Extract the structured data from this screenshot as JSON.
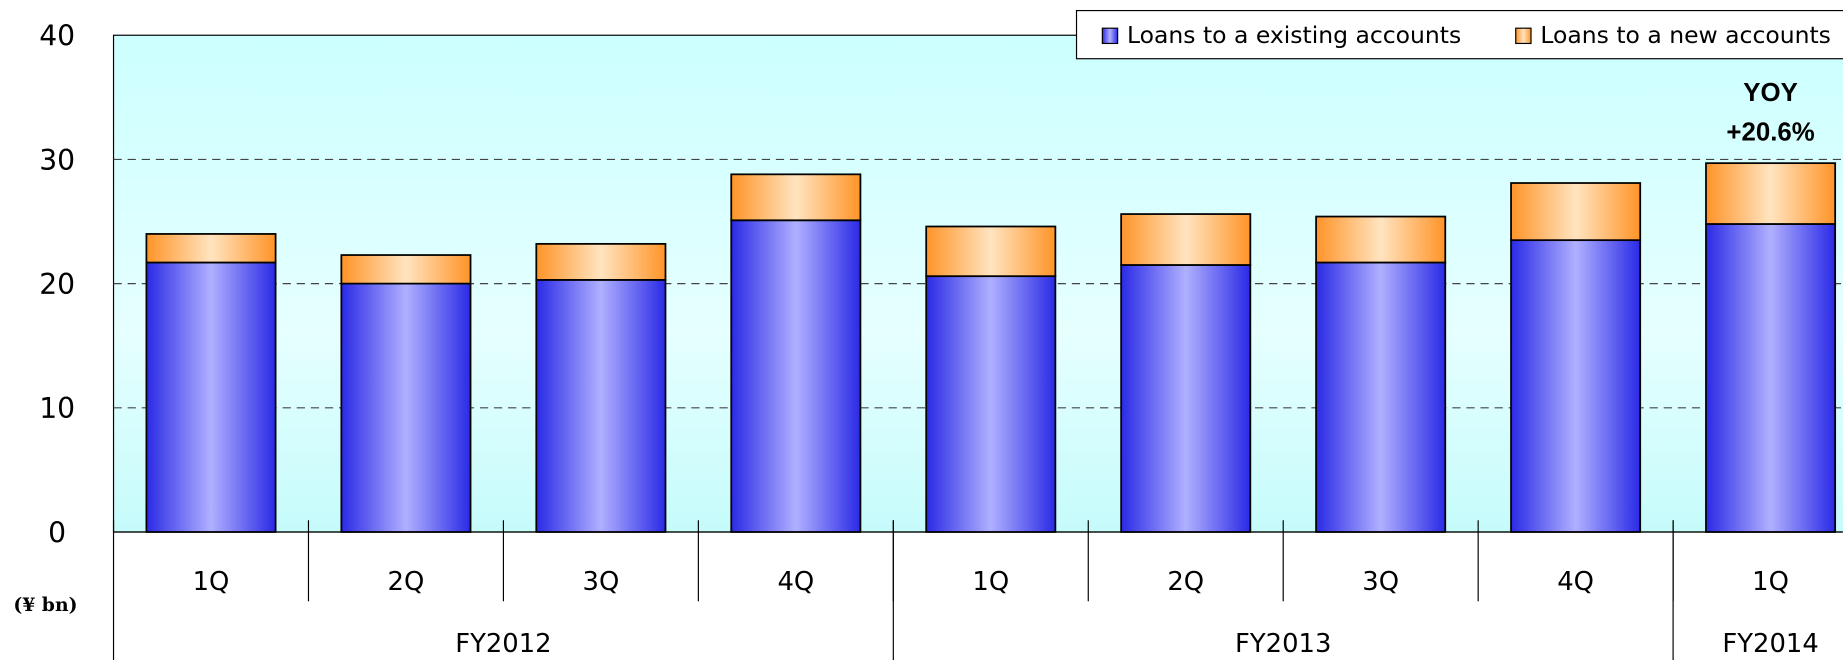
{
  "chart_data": {
    "type": "stacked_bar",
    "unit_label": "(¥ bn)",
    "categories": [
      "1Q",
      "2Q",
      "3Q",
      "4Q",
      "1Q",
      "2Q",
      "3Q",
      "4Q",
      "1Q"
    ],
    "groups": [
      {
        "name": "FY2012",
        "size": 4
      },
      {
        "name": "FY2013",
        "size": 4
      },
      {
        "name": "FY2014",
        "size": 1
      }
    ],
    "series": [
      {
        "name": "Loans to a existing accounts",
        "color": "#3a3aee",
        "values": [
          21.7,
          20.0,
          20.3,
          25.1,
          20.6,
          21.5,
          21.7,
          23.5,
          24.8
        ]
      },
      {
        "name": "Loans to a new accounts",
        "color": "#ff9a33",
        "values": [
          2.3,
          2.3,
          2.9,
          3.7,
          4.0,
          4.1,
          3.7,
          4.6,
          4.9
        ]
      }
    ],
    "annotations": [
      "YOY",
      "+20.6%"
    ],
    "ylim": [
      0,
      40
    ],
    "yticks": [
      0,
      10,
      20,
      30,
      40
    ],
    "grid": true,
    "legend": "top right"
  }
}
